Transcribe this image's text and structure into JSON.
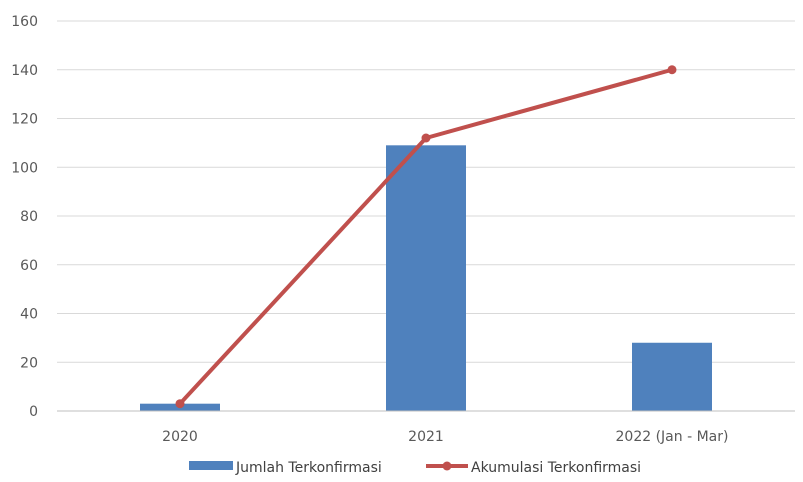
{
  "chart_data": {
    "type": "bar",
    "categories": [
      "2020",
      "2021",
      "2022 (Jan - Mar)"
    ],
    "ylim": [
      0,
      160
    ],
    "yticks": [
      0,
      20,
      40,
      60,
      80,
      100,
      120,
      140,
      160
    ],
    "grid": true,
    "legend_position": "bottom",
    "title": "",
    "xlabel": "",
    "ylabel": "",
    "series": [
      {
        "name": "Jumlah Terkonfirmasi",
        "type": "bar",
        "color": "#4f81bd",
        "values": [
          3,
          109,
          28
        ]
      },
      {
        "name": "Akumulasi Terkonfirmasi",
        "type": "line",
        "color": "#c0504d",
        "values": [
          3,
          112,
          140
        ]
      }
    ]
  }
}
